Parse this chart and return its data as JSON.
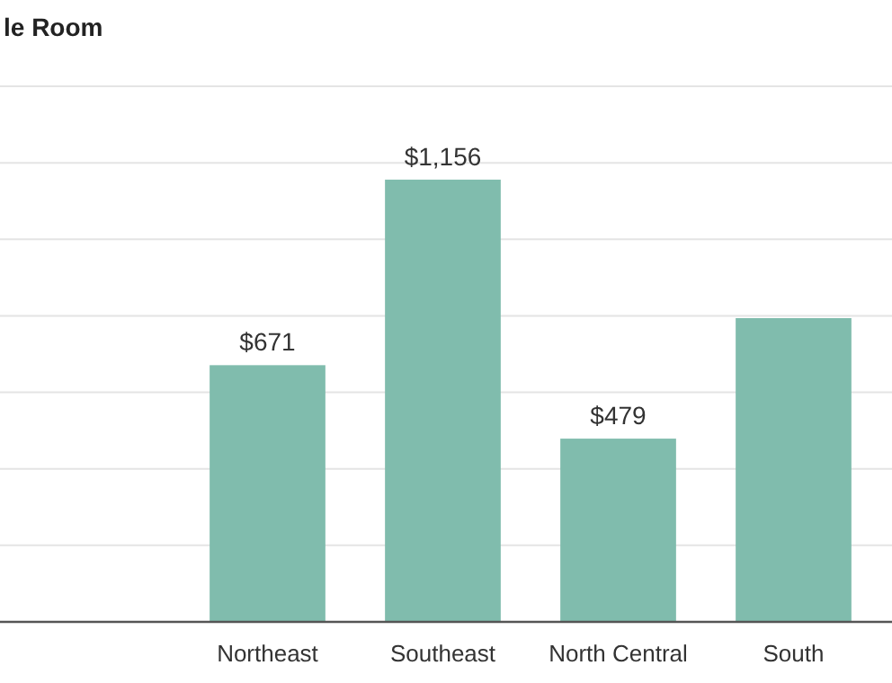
{
  "chart_data": {
    "type": "bar",
    "title": "le Room",
    "categories": [
      "Northeast",
      "Southeast",
      "North Central",
      "South"
    ],
    "values": [
      671,
      1156,
      479,
      794
    ],
    "value_labels": [
      "$671",
      "$1,156",
      "$479",
      null
    ],
    "color": "#80bcad",
    "ylim": [
      0,
      1400
    ],
    "yticks": [
      {
        "value": 0,
        "label": null
      },
      {
        "value": 200,
        "label": null
      },
      {
        "value": 400,
        "label": null
      },
      {
        "value": 600,
        "label": null
      },
      {
        "value": 800,
        "label": null
      },
      {
        "value": 1000,
        "label": null
      },
      {
        "value": 1200,
        "label": null
      },
      {
        "value": 1400,
        "label": null
      }
    ],
    "grid": true,
    "tick_labels": "x"
  }
}
